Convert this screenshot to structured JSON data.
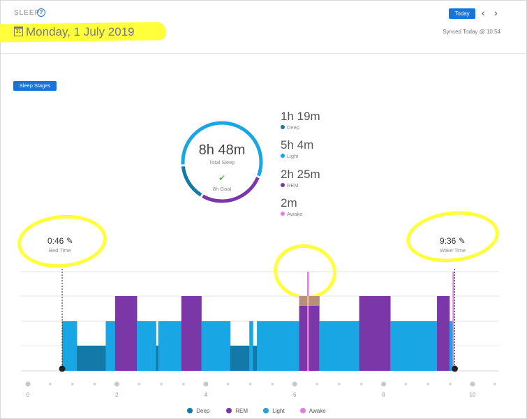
{
  "header": {
    "section_title": "SLEEP",
    "help_icon": "?",
    "today_label": "Today",
    "prev_icon": "‹",
    "next_icon": "›",
    "date": "Monday, 1 July 2019",
    "calendar_icon": "31",
    "synced": "Synced Today @ 10:54"
  },
  "controls": {
    "sleep_stages_label": "Sleep Stages"
  },
  "summary": {
    "total_sleep": "8h 48m",
    "total_label": "Total Sleep",
    "goal_label": "8h Goal",
    "goal_met_icon": "✔",
    "stages": [
      {
        "value": "1h 19m",
        "label": "Deep"
      },
      {
        "value": "5h 4m",
        "label": "Light"
      },
      {
        "value": "2h 25m",
        "label": "REM"
      },
      {
        "value": "2m",
        "label": "Awake"
      }
    ]
  },
  "bed_time": {
    "value": "0:46",
    "label": "Bed Time",
    "edit_icon": "✎"
  },
  "wake_time": {
    "value": "9:36",
    "label": "Wake Time",
    "edit_icon": "✎"
  },
  "colors": {
    "deep": "#1379a6",
    "light": "#19a6e5",
    "rem": "#7b37a8",
    "awake": "#e07fe0",
    "highlight": "#ffff3b",
    "accent": "#1a73d6"
  },
  "chart_data": {
    "type": "bar",
    "x_unit": "hours after midnight",
    "xlim": [
      0,
      10.75
    ],
    "x_ticks": [
      0,
      2,
      4,
      6,
      8,
      10
    ],
    "stage_levels": [
      "Deep",
      "Light",
      "REM",
      "Awake"
    ],
    "start": 0.77,
    "end": 9.6,
    "segments": [
      {
        "start": 0.77,
        "end": 1.1,
        "stage": "Light"
      },
      {
        "start": 1.1,
        "end": 1.75,
        "stage": "Deep"
      },
      {
        "start": 1.75,
        "end": 1.96,
        "stage": "Light"
      },
      {
        "start": 1.96,
        "end": 2.45,
        "stage": "REM"
      },
      {
        "start": 2.45,
        "end": 2.88,
        "stage": "Light"
      },
      {
        "start": 2.88,
        "end": 2.93,
        "stage": "Deep"
      },
      {
        "start": 2.93,
        "end": 3.45,
        "stage": "Light"
      },
      {
        "start": 3.45,
        "end": 3.9,
        "stage": "REM"
      },
      {
        "start": 3.9,
        "end": 4.55,
        "stage": "Light"
      },
      {
        "start": 4.55,
        "end": 4.98,
        "stage": "Deep"
      },
      {
        "start": 4.98,
        "end": 5.06,
        "stage": "Light"
      },
      {
        "start": 5.06,
        "end": 5.15,
        "stage": "Deep"
      },
      {
        "start": 5.15,
        "end": 6.1,
        "stage": "Light"
      },
      {
        "start": 6.1,
        "end": 6.55,
        "stage": "REM"
      },
      {
        "start": 6.28,
        "end": 6.32,
        "stage": "Awake"
      },
      {
        "start": 6.55,
        "end": 7.45,
        "stage": "Light"
      },
      {
        "start": 7.45,
        "end": 8.15,
        "stage": "REM"
      },
      {
        "start": 8.15,
        "end": 9.2,
        "stage": "Light"
      },
      {
        "start": 9.2,
        "end": 9.48,
        "stage": "REM"
      },
      {
        "start": 9.48,
        "end": 9.55,
        "stage": "Light"
      },
      {
        "start": 9.55,
        "end": 9.58,
        "stage": "Awake"
      }
    ],
    "legend": [
      "Deep",
      "REM",
      "Light",
      "Awake"
    ]
  }
}
